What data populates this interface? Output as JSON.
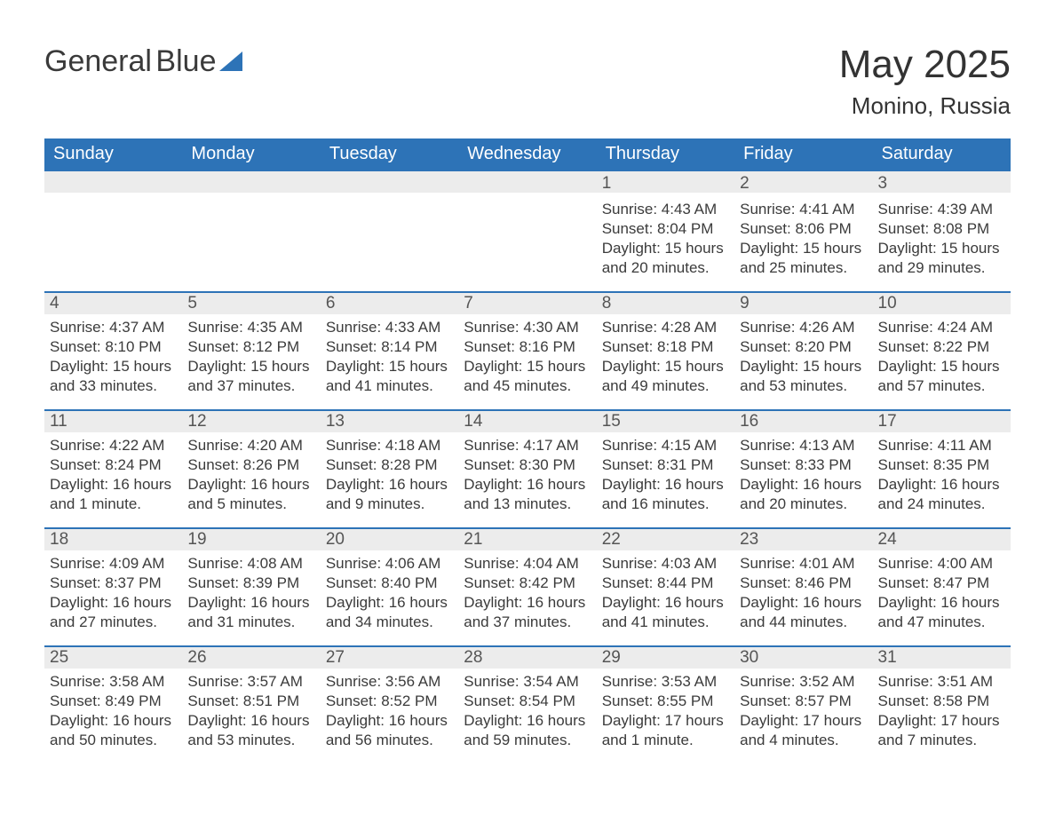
{
  "logo": {
    "word1": "General",
    "word2": "Blue"
  },
  "title": {
    "main": "May 2025",
    "sub": "Monino, Russia"
  },
  "colors": {
    "header_bg": "#2d73b7",
    "header_text": "#ffffff",
    "band_bg": "#ececec",
    "band_border": "#2d73b7",
    "body_text": "#3b3b3b",
    "page_bg": "#ffffff"
  },
  "day_headers": [
    "Sunday",
    "Monday",
    "Tuesday",
    "Wednesday",
    "Thursday",
    "Friday",
    "Saturday"
  ],
  "weeks": [
    [
      null,
      null,
      null,
      null,
      {
        "n": "1",
        "sr": "Sunrise: 4:43 AM",
        "ss": "Sunset: 8:04 PM",
        "dl": "Daylight: 15 hours and 20 minutes."
      },
      {
        "n": "2",
        "sr": "Sunrise: 4:41 AM",
        "ss": "Sunset: 8:06 PM",
        "dl": "Daylight: 15 hours and 25 minutes."
      },
      {
        "n": "3",
        "sr": "Sunrise: 4:39 AM",
        "ss": "Sunset: 8:08 PM",
        "dl": "Daylight: 15 hours and 29 minutes."
      }
    ],
    [
      {
        "n": "4",
        "sr": "Sunrise: 4:37 AM",
        "ss": "Sunset: 8:10 PM",
        "dl": "Daylight: 15 hours and 33 minutes."
      },
      {
        "n": "5",
        "sr": "Sunrise: 4:35 AM",
        "ss": "Sunset: 8:12 PM",
        "dl": "Daylight: 15 hours and 37 minutes."
      },
      {
        "n": "6",
        "sr": "Sunrise: 4:33 AM",
        "ss": "Sunset: 8:14 PM",
        "dl": "Daylight: 15 hours and 41 minutes."
      },
      {
        "n": "7",
        "sr": "Sunrise: 4:30 AM",
        "ss": "Sunset: 8:16 PM",
        "dl": "Daylight: 15 hours and 45 minutes."
      },
      {
        "n": "8",
        "sr": "Sunrise: 4:28 AM",
        "ss": "Sunset: 8:18 PM",
        "dl": "Daylight: 15 hours and 49 minutes."
      },
      {
        "n": "9",
        "sr": "Sunrise: 4:26 AM",
        "ss": "Sunset: 8:20 PM",
        "dl": "Daylight: 15 hours and 53 minutes."
      },
      {
        "n": "10",
        "sr": "Sunrise: 4:24 AM",
        "ss": "Sunset: 8:22 PM",
        "dl": "Daylight: 15 hours and 57 minutes."
      }
    ],
    [
      {
        "n": "11",
        "sr": "Sunrise: 4:22 AM",
        "ss": "Sunset: 8:24 PM",
        "dl": "Daylight: 16 hours and 1 minute."
      },
      {
        "n": "12",
        "sr": "Sunrise: 4:20 AM",
        "ss": "Sunset: 8:26 PM",
        "dl": "Daylight: 16 hours and 5 minutes."
      },
      {
        "n": "13",
        "sr": "Sunrise: 4:18 AM",
        "ss": "Sunset: 8:28 PM",
        "dl": "Daylight: 16 hours and 9 minutes."
      },
      {
        "n": "14",
        "sr": "Sunrise: 4:17 AM",
        "ss": "Sunset: 8:30 PM",
        "dl": "Daylight: 16 hours and 13 minutes."
      },
      {
        "n": "15",
        "sr": "Sunrise: 4:15 AM",
        "ss": "Sunset: 8:31 PM",
        "dl": "Daylight: 16 hours and 16 minutes."
      },
      {
        "n": "16",
        "sr": "Sunrise: 4:13 AM",
        "ss": "Sunset: 8:33 PM",
        "dl": "Daylight: 16 hours and 20 minutes."
      },
      {
        "n": "17",
        "sr": "Sunrise: 4:11 AM",
        "ss": "Sunset: 8:35 PM",
        "dl": "Daylight: 16 hours and 24 minutes."
      }
    ],
    [
      {
        "n": "18",
        "sr": "Sunrise: 4:09 AM",
        "ss": "Sunset: 8:37 PM",
        "dl": "Daylight: 16 hours and 27 minutes."
      },
      {
        "n": "19",
        "sr": "Sunrise: 4:08 AM",
        "ss": "Sunset: 8:39 PM",
        "dl": "Daylight: 16 hours and 31 minutes."
      },
      {
        "n": "20",
        "sr": "Sunrise: 4:06 AM",
        "ss": "Sunset: 8:40 PM",
        "dl": "Daylight: 16 hours and 34 minutes."
      },
      {
        "n": "21",
        "sr": "Sunrise: 4:04 AM",
        "ss": "Sunset: 8:42 PM",
        "dl": "Daylight: 16 hours and 37 minutes."
      },
      {
        "n": "22",
        "sr": "Sunrise: 4:03 AM",
        "ss": "Sunset: 8:44 PM",
        "dl": "Daylight: 16 hours and 41 minutes."
      },
      {
        "n": "23",
        "sr": "Sunrise: 4:01 AM",
        "ss": "Sunset: 8:46 PM",
        "dl": "Daylight: 16 hours and 44 minutes."
      },
      {
        "n": "24",
        "sr": "Sunrise: 4:00 AM",
        "ss": "Sunset: 8:47 PM",
        "dl": "Daylight: 16 hours and 47 minutes."
      }
    ],
    [
      {
        "n": "25",
        "sr": "Sunrise: 3:58 AM",
        "ss": "Sunset: 8:49 PM",
        "dl": "Daylight: 16 hours and 50 minutes."
      },
      {
        "n": "26",
        "sr": "Sunrise: 3:57 AM",
        "ss": "Sunset: 8:51 PM",
        "dl": "Daylight: 16 hours and 53 minutes."
      },
      {
        "n": "27",
        "sr": "Sunrise: 3:56 AM",
        "ss": "Sunset: 8:52 PM",
        "dl": "Daylight: 16 hours and 56 minutes."
      },
      {
        "n": "28",
        "sr": "Sunrise: 3:54 AM",
        "ss": "Sunset: 8:54 PM",
        "dl": "Daylight: 16 hours and 59 minutes."
      },
      {
        "n": "29",
        "sr": "Sunrise: 3:53 AM",
        "ss": "Sunset: 8:55 PM",
        "dl": "Daylight: 17 hours and 1 minute."
      },
      {
        "n": "30",
        "sr": "Sunrise: 3:52 AM",
        "ss": "Sunset: 8:57 PM",
        "dl": "Daylight: 17 hours and 4 minutes."
      },
      {
        "n": "31",
        "sr": "Sunrise: 3:51 AM",
        "ss": "Sunset: 8:58 PM",
        "dl": "Daylight: 17 hours and 7 minutes."
      }
    ]
  ]
}
